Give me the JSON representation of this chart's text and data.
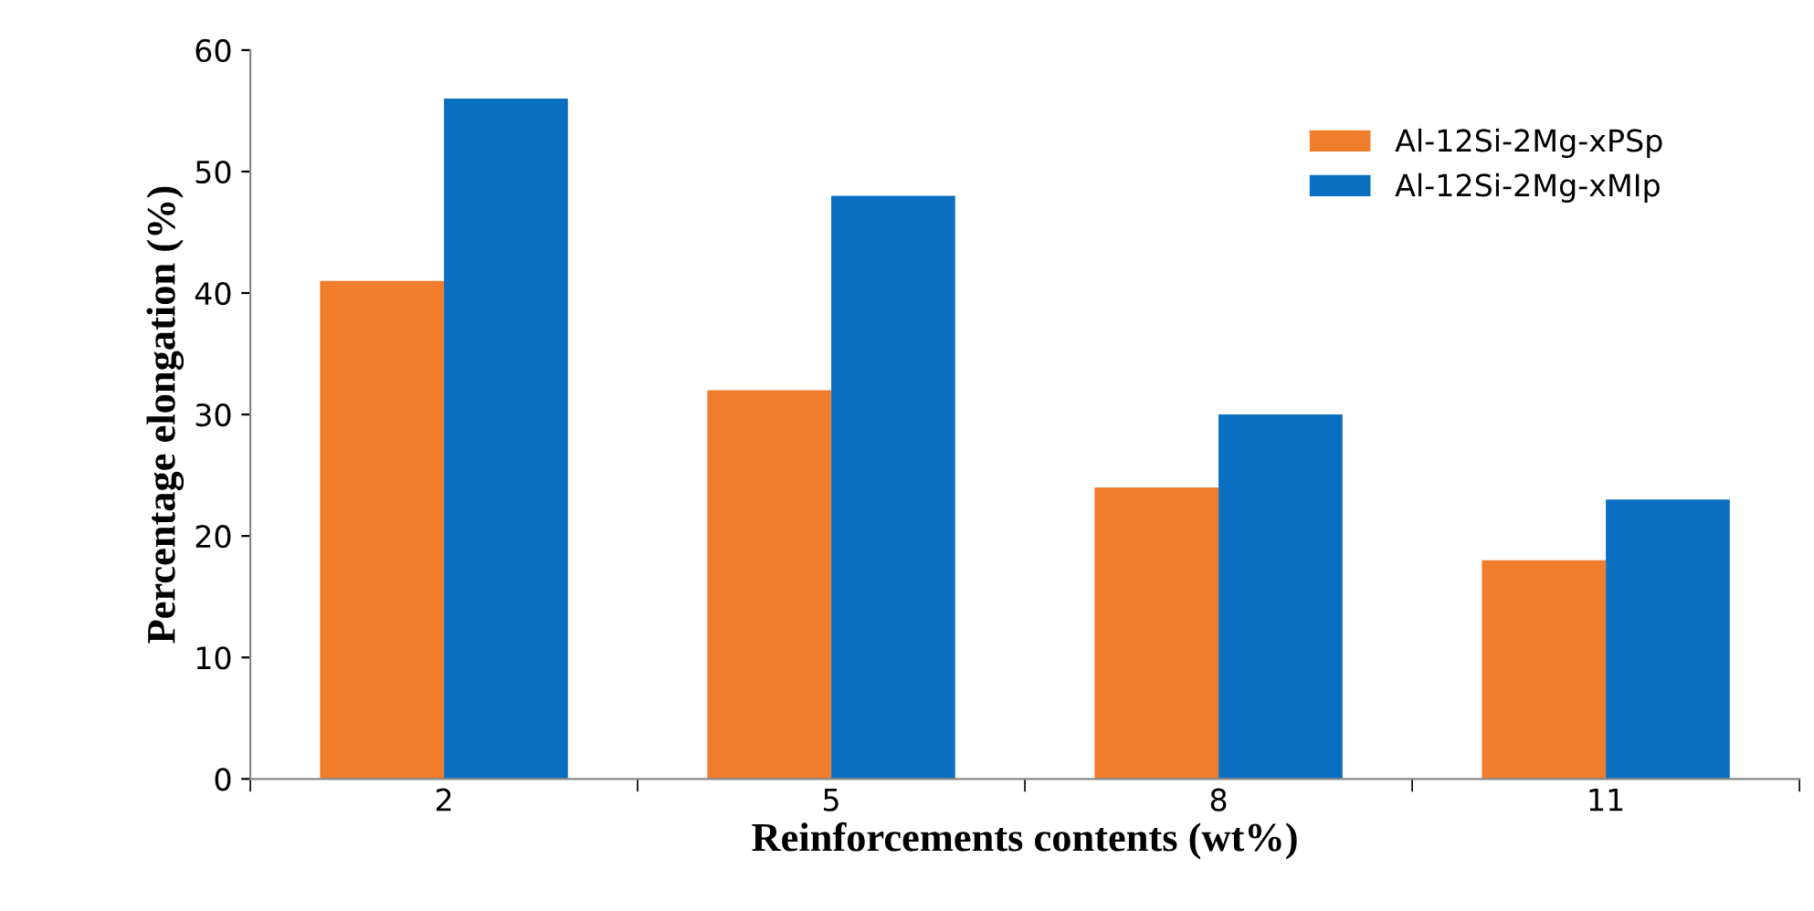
{
  "chart_data": {
    "type": "bar",
    "xlabel": "Reinforcements contents (wt%)",
    "ylabel": "Percentage elongation (%)",
    "categories": [
      "2",
      "5",
      "8",
      "11"
    ],
    "series": [
      {
        "name": "Al-12Si-2Mg-xPSp",
        "color": "#f07d2c",
        "values": [
          41,
          32,
          24,
          18
        ]
      },
      {
        "name": "Al-12Si-2Mg-xMIp",
        "color": "#0b6fc1",
        "values": [
          56,
          48,
          30,
          23
        ]
      }
    ],
    "ylim": [
      0,
      60
    ],
    "yticks": [
      0,
      10,
      20,
      30,
      40,
      50,
      60
    ],
    "grid": false,
    "legend": "top right"
  }
}
